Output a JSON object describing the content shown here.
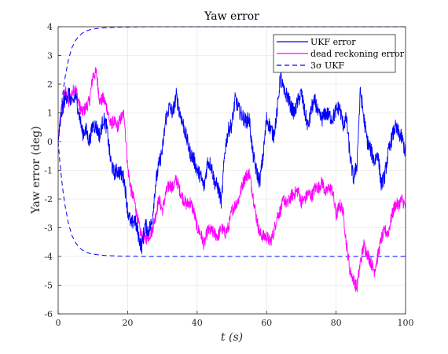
{
  "chart_data": {
    "type": "line",
    "title": "Yaw error",
    "xlabel": "t (s)",
    "ylabel": "Yaw error (deg)",
    "xlim": [
      0,
      100
    ],
    "ylim": [
      -6,
      4
    ],
    "xticks": [
      "0",
      "20",
      "40",
      "60",
      "80",
      "100"
    ],
    "yticks": [
      "-6",
      "-5",
      "-4",
      "-3",
      "-2",
      "-1",
      "0",
      "1",
      "2",
      "3",
      "4"
    ],
    "grid": true,
    "legend_position": "top-right",
    "series": [
      {
        "name": "UKF error",
        "color": "#0000ff",
        "style": "solid",
        "x": [
          0,
          1,
          2,
          3,
          4,
          5,
          6,
          7,
          8,
          9,
          10,
          11,
          12,
          13,
          14,
          15,
          16,
          17,
          18,
          19,
          20,
          21,
          22,
          23,
          24,
          25,
          26,
          27,
          28,
          29,
          30,
          31,
          32,
          33,
          34,
          35,
          36,
          37,
          38,
          39,
          40,
          41,
          42,
          43,
          44,
          45,
          46,
          47,
          48,
          49,
          50,
          51,
          52,
          53,
          54,
          55,
          56,
          57,
          58,
          59,
          60,
          61,
          62,
          63,
          64,
          65,
          66,
          67,
          68,
          69,
          70,
          71,
          72,
          73,
          74,
          75,
          76,
          77,
          78,
          79,
          80,
          81,
          82,
          83,
          84,
          85,
          86,
          87,
          88,
          89,
          90,
          91,
          92,
          93,
          94,
          95,
          96,
          97,
          98,
          99,
          100
        ],
        "y": [
          0.0,
          1.0,
          1.5,
          1.7,
          1.3,
          1.6,
          1.0,
          0.3,
          0.4,
          0.0,
          0.6,
          0.5,
          0.2,
          0.8,
          0.5,
          -0.6,
          -1.1,
          -1.0,
          -1.1,
          -1.3,
          -2.4,
          -2.9,
          -2.7,
          -3.2,
          -3.7,
          -2.9,
          -3.1,
          -2.8,
          -1.5,
          -0.8,
          -0.3,
          0.8,
          1.2,
          1.0,
          1.6,
          1.0,
          0.6,
          0.1,
          -0.4,
          -0.6,
          -1.0,
          -1.2,
          -1.6,
          -0.7,
          -0.8,
          -1.4,
          -1.6,
          -2.1,
          -0.3,
          0.4,
          0.6,
          1.5,
          1.1,
          0.9,
          0.7,
          0.8,
          -0.4,
          -1.0,
          -1.4,
          -0.5,
          0.8,
          0.5,
          0.2,
          1.0,
          2.3,
          1.7,
          1.6,
          1.2,
          1.0,
          1.4,
          1.7,
          1.0,
          0.5,
          1.2,
          1.4,
          0.9,
          0.8,
          1.0,
          0.9,
          0.8,
          1.1,
          1.2,
          0.6,
          0.8,
          -0.5,
          -1.3,
          -0.8,
          1.8,
          0.8,
          0.0,
          -0.3,
          -0.7,
          -0.4,
          -1.5,
          -1.2,
          -0.4,
          0.1,
          0.5,
          0.3,
          0.1,
          -0.4
        ]
      },
      {
        "name": "dead reckoning error",
        "color": "#ff00ff",
        "style": "solid",
        "x": [
          0,
          1,
          2,
          3,
          4,
          5,
          6,
          7,
          8,
          9,
          10,
          11,
          12,
          13,
          14,
          15,
          16,
          17,
          18,
          19,
          20,
          21,
          22,
          23,
          24,
          25,
          26,
          27,
          28,
          29,
          30,
          31,
          32,
          33,
          34,
          35,
          36,
          37,
          38,
          39,
          40,
          41,
          42,
          43,
          44,
          45,
          46,
          47,
          48,
          49,
          50,
          51,
          52,
          53,
          54,
          55,
          56,
          57,
          58,
          59,
          60,
          61,
          62,
          63,
          64,
          65,
          66,
          67,
          68,
          69,
          70,
          71,
          72,
          73,
          74,
          75,
          76,
          77,
          78,
          79,
          80,
          81,
          82,
          83,
          84,
          85,
          86,
          87,
          88,
          89,
          90,
          91,
          92,
          93,
          94,
          95,
          96,
          97,
          98,
          99,
          100
        ],
        "y": [
          0.0,
          1.2,
          1.8,
          1.3,
          1.7,
          1.9,
          1.3,
          1.0,
          1.2,
          1.4,
          2.3,
          2.4,
          1.4,
          1.5,
          1.2,
          0.6,
          0.7,
          0.5,
          0.8,
          1.0,
          -0.9,
          -1.7,
          -2.1,
          -2.8,
          -3.3,
          -3.4,
          -3.3,
          -3.1,
          -2.6,
          -2.0,
          -2.4,
          -1.8,
          -1.5,
          -1.6,
          -1.3,
          -1.7,
          -2.0,
          -2.2,
          -2.1,
          -2.4,
          -3.0,
          -3.2,
          -3.6,
          -3.1,
          -3.1,
          -3.2,
          -3.3,
          -3.0,
          -3.2,
          -3.0,
          -2.4,
          -2.2,
          -2.0,
          -1.5,
          -1.2,
          -1.1,
          -1.8,
          -2.6,
          -3.2,
          -3.3,
          -3.3,
          -3.5,
          -3.2,
          -2.6,
          -2.4,
          -2.0,
          -2.2,
          -1.9,
          -1.8,
          -1.7,
          -2.1,
          -2.0,
          -1.8,
          -1.9,
          -1.6,
          -1.6,
          -1.4,
          -1.8,
          -1.6,
          -1.7,
          -2.6,
          -2.2,
          -2.4,
          -3.6,
          -4.5,
          -4.8,
          -5.1,
          -4.2,
          -3.6,
          -3.9,
          -4.2,
          -4.5,
          -4.0,
          -3.4,
          -3.1,
          -3.2,
          -2.6,
          -2.2,
          -2.2,
          -2.0,
          -2.3
        ]
      },
      {
        "name": "3σ UKF",
        "color": "#0000ff",
        "style": "dashed",
        "x": [
          0,
          0.5,
          1,
          1.5,
          2,
          3,
          4,
          5,
          6,
          7,
          8,
          9,
          10,
          12,
          14,
          16,
          18,
          20,
          25,
          30,
          40,
          50,
          60,
          70,
          80,
          90,
          100
        ],
        "upper": [
          0.0,
          0.72,
          1.32,
          1.83,
          2.24,
          2.88,
          3.28,
          3.52,
          3.68,
          3.78,
          3.85,
          3.89,
          3.92,
          3.95,
          3.97,
          3.98,
          3.99,
          3.99,
          4.0,
          4.0,
          4.0,
          4.0,
          4.0,
          4.0,
          4.0,
          4.0,
          4.0
        ],
        "lower": [
          0.0,
          -0.72,
          -1.32,
          -1.83,
          -2.24,
          -2.88,
          -3.28,
          -3.52,
          -3.68,
          -3.78,
          -3.85,
          -3.89,
          -3.92,
          -3.95,
          -3.97,
          -3.98,
          -3.99,
          -3.99,
          -4.0,
          -4.0,
          -4.0,
          -4.0,
          -4.0,
          -4.0,
          -4.0,
          -4.0,
          -4.0
        ]
      }
    ]
  }
}
